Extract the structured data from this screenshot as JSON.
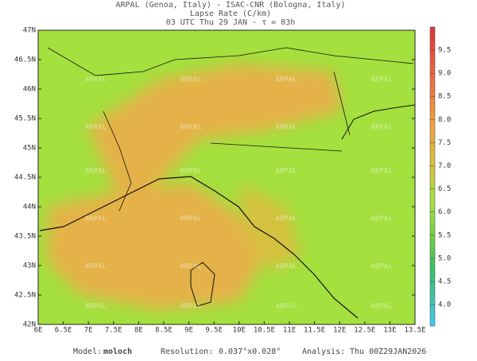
{
  "header": {
    "line1": "ARPAL (Genoa, Italy)  -  ISAC-CNR (Bologna, Italy)",
    "line2": "Lapse Rate (C/km)",
    "line3": "03 UTC Thu 29 JAN  -  τ = 03h"
  },
  "map": {
    "lat_labels": [
      "47N",
      "46.5N",
      "46N",
      "45.5N",
      "45N",
      "44.5N",
      "44N",
      "43.5N",
      "43N",
      "42.5N",
      "42N"
    ],
    "lon_labels": [
      "6E",
      "6.5E",
      "7E",
      "7.5E",
      "8E",
      "8.5E",
      "9E",
      "9.5E",
      "10E",
      "10.5E",
      "11E",
      "11.5E",
      "12E",
      "12.5E",
      "13E",
      "13.5E"
    ],
    "watermark": "ARPAL"
  },
  "colorbar": {
    "labels": [
      "9.5",
      "9.0",
      "8.5",
      "8.0",
      "7.5",
      "7.0",
      "6.5",
      "6.0",
      "5.5",
      "5.0",
      "4.5",
      "4.0"
    ]
  },
  "footer": {
    "model_label": "Model:",
    "model": "moloch",
    "resolution_label": "Resolution:",
    "resolution": "0.037°x0.028°",
    "analysis_label": "Analysis:",
    "analysis": "Thu 00Z29JAN2026"
  }
}
